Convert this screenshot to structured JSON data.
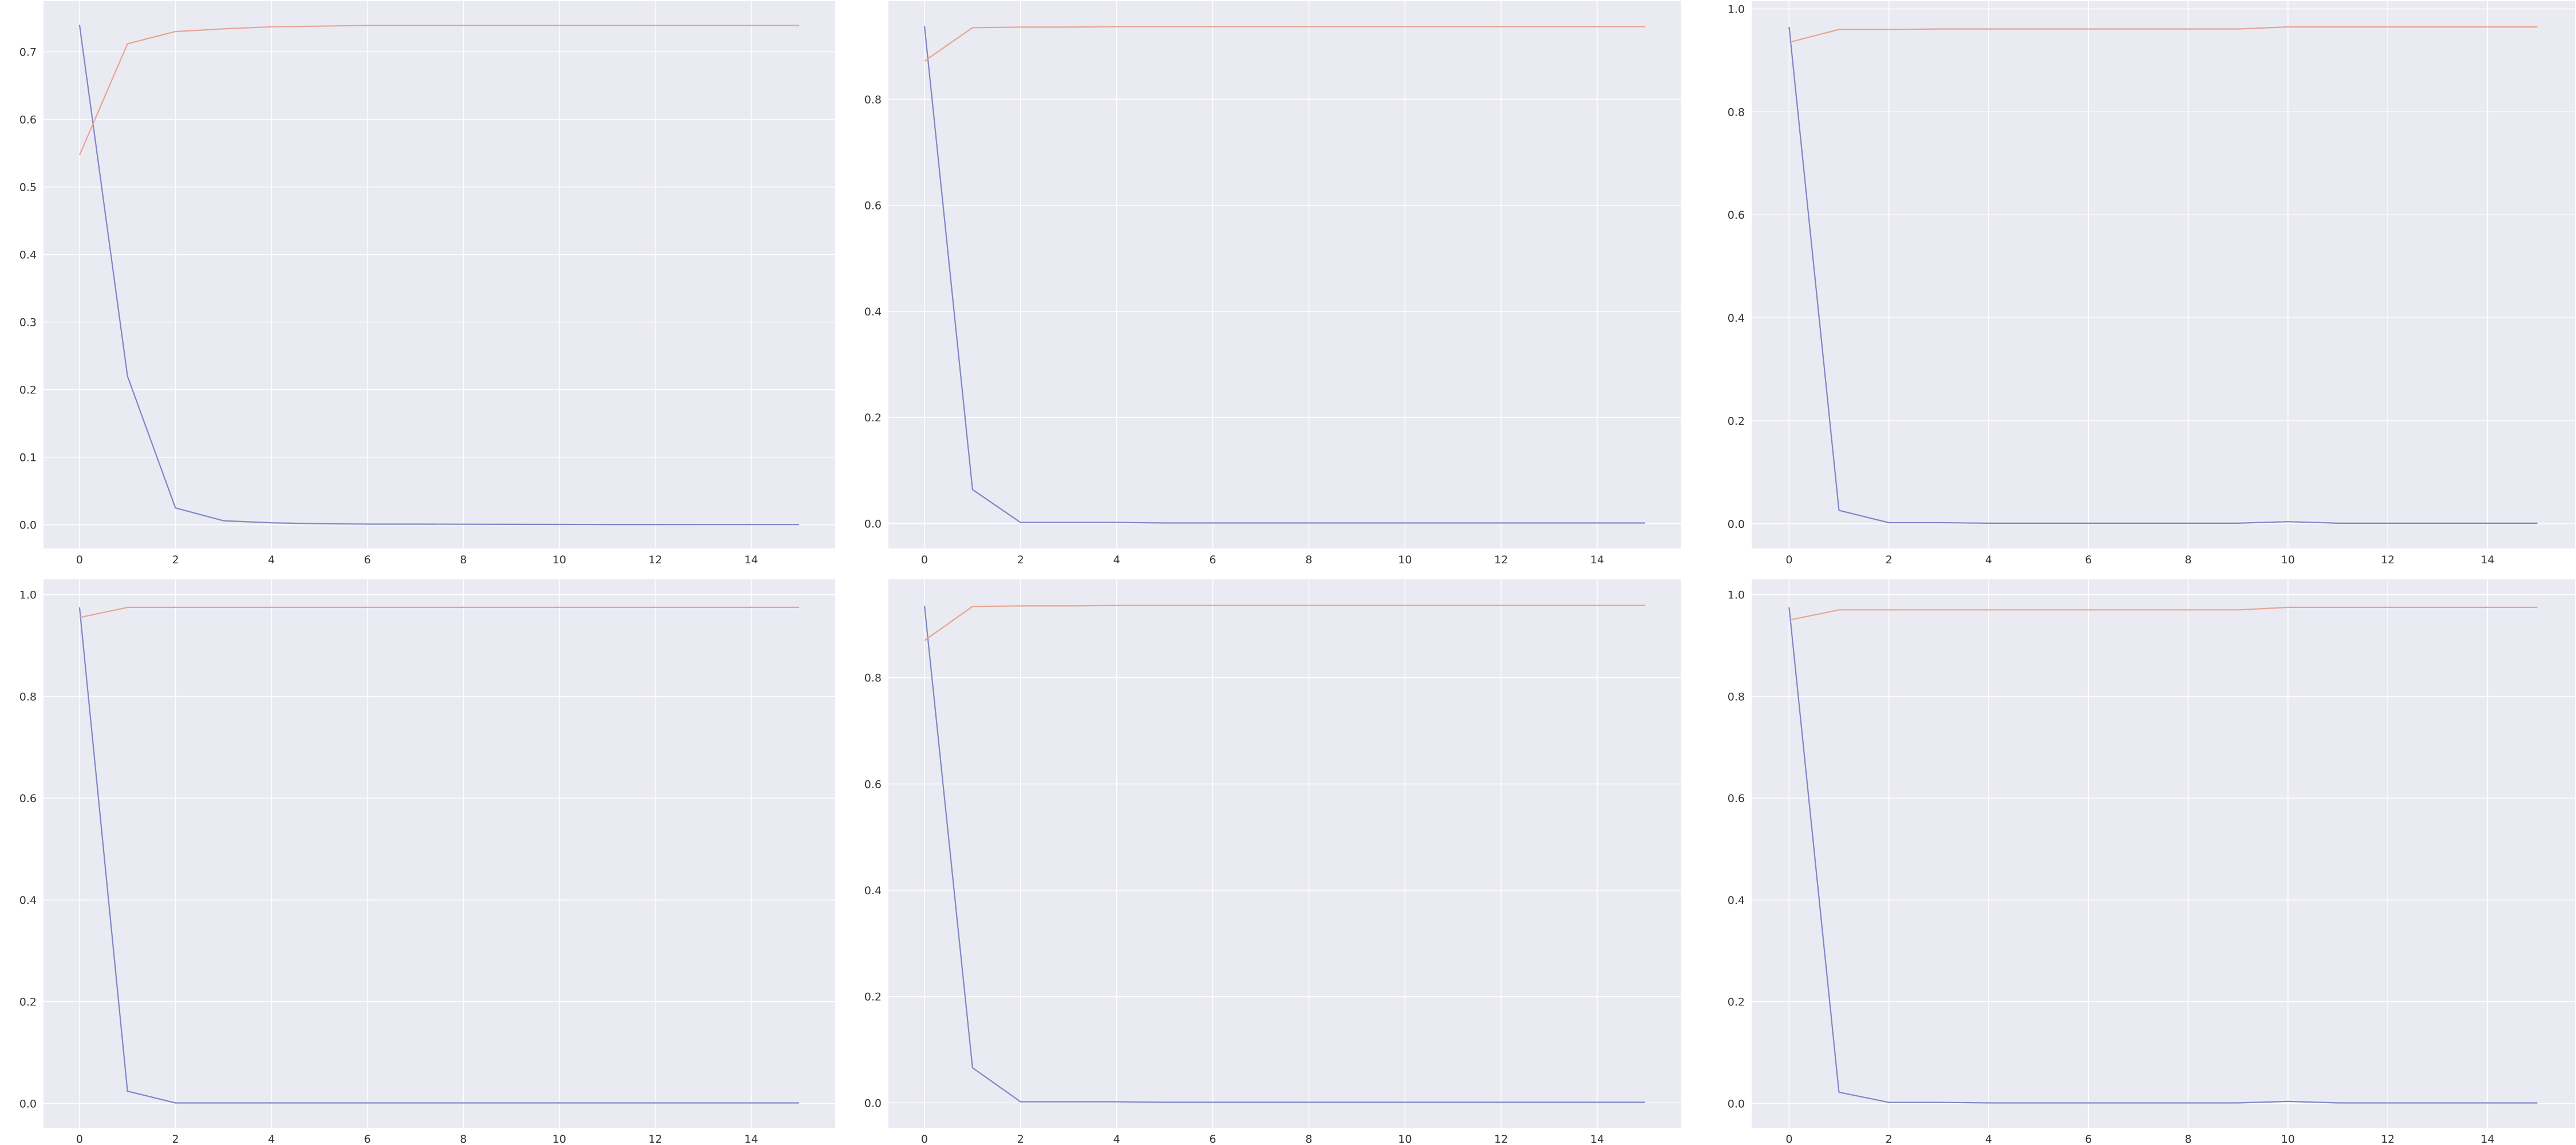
{
  "colors": {
    "background": "#eaeaf2",
    "grid": "#ffffff",
    "tick_text": "#333333",
    "series_blue": "#7f86c6",
    "series_orange": "#e8a493"
  },
  "chart_data": [
    {
      "type": "line",
      "grid": true,
      "xlim": [
        -0.75,
        15.75
      ],
      "ylim": [
        -0.035,
        0.775
      ],
      "x_ticks": [
        "0",
        "2",
        "4",
        "6",
        "8",
        "10",
        "12",
        "14"
      ],
      "y_ticks": [
        "0.0",
        "0.1",
        "0.2",
        "0.3",
        "0.4",
        "0.5",
        "0.6",
        "0.7"
      ],
      "x": [
        0,
        1,
        2,
        3,
        4,
        5,
        6,
        7,
        8,
        9,
        10,
        11,
        12,
        13,
        14,
        15
      ],
      "series": [
        {
          "color": "series_blue",
          "values": [
            0.74,
            0.22,
            0.025,
            0.006,
            0.003,
            0.0015,
            0.001,
            0.001,
            0.0008,
            0.0007,
            0.0006,
            0.0005,
            0.0005,
            0.0004,
            0.0004,
            0.0004
          ]
        },
        {
          "color": "series_orange",
          "values": [
            0.547,
            0.712,
            0.73,
            0.734,
            0.737,
            0.738,
            0.739,
            0.739,
            0.739,
            0.739,
            0.739,
            0.739,
            0.739,
            0.739,
            0.739,
            0.739
          ]
        }
      ]
    },
    {
      "type": "line",
      "grid": true,
      "xlim": [
        -0.75,
        15.75
      ],
      "ylim": [
        -0.047,
        0.985
      ],
      "x_ticks": [
        "0",
        "2",
        "4",
        "6",
        "8",
        "10",
        "12",
        "14"
      ],
      "y_ticks": [
        "0.0",
        "0.2",
        "0.4",
        "0.6",
        "0.8"
      ],
      "x": [
        0,
        1,
        2,
        3,
        4,
        5,
        6,
        7,
        8,
        9,
        10,
        11,
        12,
        13,
        14,
        15
      ],
      "series": [
        {
          "color": "series_blue",
          "values": [
            0.938,
            0.064,
            0.002,
            0.002,
            0.002,
            0.001,
            0.001,
            0.001,
            0.001,
            0.001,
            0.001,
            0.001,
            0.001,
            0.001,
            0.001,
            0.001
          ]
        },
        {
          "color": "series_orange",
          "values": [
            0.872,
            0.935,
            0.936,
            0.936,
            0.937,
            0.937,
            0.937,
            0.937,
            0.937,
            0.937,
            0.937,
            0.937,
            0.937,
            0.937,
            0.937,
            0.937
          ]
        }
      ]
    },
    {
      "type": "line",
      "grid": true,
      "xlim": [
        -0.75,
        15.75
      ],
      "ylim": [
        -0.048,
        1.015
      ],
      "x_ticks": [
        "0",
        "2",
        "4",
        "6",
        "8",
        "10",
        "12",
        "14"
      ],
      "y_ticks": [
        "0.0",
        "0.2",
        "0.4",
        "0.6",
        "0.8",
        "1.0"
      ],
      "x": [
        0,
        1,
        2,
        3,
        4,
        5,
        6,
        7,
        8,
        9,
        10,
        11,
        12,
        13,
        14,
        15
      ],
      "series": [
        {
          "color": "series_blue",
          "values": [
            0.965,
            0.026,
            0.002,
            0.002,
            0.001,
            0.001,
            0.001,
            0.001,
            0.001,
            0.001,
            0.004,
            0.001,
            0.001,
            0.001,
            0.001,
            0.001
          ]
        },
        {
          "color": "series_orange",
          "values": [
            0.935,
            0.96,
            0.96,
            0.961,
            0.961,
            0.961,
            0.961,
            0.961,
            0.961,
            0.961,
            0.965,
            0.965,
            0.965,
            0.965,
            0.965,
            0.965
          ]
        }
      ]
    },
    {
      "type": "line",
      "grid": true,
      "xlim": [
        -0.75,
        15.75
      ],
      "ylim": [
        -0.048,
        1.03
      ],
      "x_ticks": [
        "0",
        "2",
        "4",
        "6",
        "8",
        "10",
        "12",
        "14"
      ],
      "y_ticks": [
        "0.0",
        "0.2",
        "0.4",
        "0.6",
        "0.8",
        "1.0"
      ],
      "x": [
        0,
        1,
        2,
        3,
        4,
        5,
        6,
        7,
        8,
        9,
        10,
        11,
        12,
        13,
        14,
        15
      ],
      "series": [
        {
          "color": "series_blue",
          "values": [
            0.975,
            0.024,
            0.001,
            0.001,
            0.001,
            0.001,
            0.001,
            0.001,
            0.001,
            0.001,
            0.001,
            0.001,
            0.001,
            0.001,
            0.001,
            0.001
          ]
        },
        {
          "color": "series_orange",
          "values": [
            0.955,
            0.975,
            0.975,
            0.975,
            0.975,
            0.975,
            0.975,
            0.975,
            0.975,
            0.975,
            0.975,
            0.975,
            0.975,
            0.975,
            0.975,
            0.975
          ]
        }
      ]
    },
    {
      "type": "line",
      "grid": true,
      "xlim": [
        -0.75,
        15.75
      ],
      "ylim": [
        -0.047,
        0.985
      ],
      "x_ticks": [
        "0",
        "2",
        "4",
        "6",
        "8",
        "10",
        "12",
        "14"
      ],
      "y_ticks": [
        "0.0",
        "0.2",
        "0.4",
        "0.6",
        "0.8"
      ],
      "x": [
        0,
        1,
        2,
        3,
        4,
        5,
        6,
        7,
        8,
        9,
        10,
        11,
        12,
        13,
        14,
        15
      ],
      "series": [
        {
          "color": "series_blue",
          "values": [
            0.935,
            0.066,
            0.002,
            0.002,
            0.002,
            0.001,
            0.001,
            0.001,
            0.001,
            0.001,
            0.001,
            0.001,
            0.001,
            0.001,
            0.001,
            0.001
          ]
        },
        {
          "color": "series_orange",
          "values": [
            0.87,
            0.934,
            0.935,
            0.935,
            0.936,
            0.936,
            0.936,
            0.936,
            0.936,
            0.936,
            0.936,
            0.936,
            0.936,
            0.936,
            0.936,
            0.936
          ]
        }
      ]
    },
    {
      "type": "line",
      "grid": true,
      "xlim": [
        -0.75,
        15.75
      ],
      "ylim": [
        -0.048,
        1.03
      ],
      "x_ticks": [
        "0",
        "2",
        "4",
        "6",
        "8",
        "10",
        "12",
        "14"
      ],
      "y_ticks": [
        "0.0",
        "0.2",
        "0.4",
        "0.6",
        "0.8",
        "1.0"
      ],
      "x": [
        0,
        1,
        2,
        3,
        4,
        5,
        6,
        7,
        8,
        9,
        10,
        11,
        12,
        13,
        14,
        15
      ],
      "series": [
        {
          "color": "series_blue",
          "values": [
            0.975,
            0.022,
            0.002,
            0.002,
            0.001,
            0.001,
            0.001,
            0.001,
            0.001,
            0.001,
            0.004,
            0.001,
            0.001,
            0.001,
            0.001,
            0.001
          ]
        },
        {
          "color": "series_orange",
          "values": [
            0.95,
            0.97,
            0.97,
            0.97,
            0.97,
            0.97,
            0.97,
            0.97,
            0.97,
            0.97,
            0.975,
            0.975,
            0.975,
            0.975,
            0.975,
            0.975
          ]
        }
      ]
    }
  ]
}
